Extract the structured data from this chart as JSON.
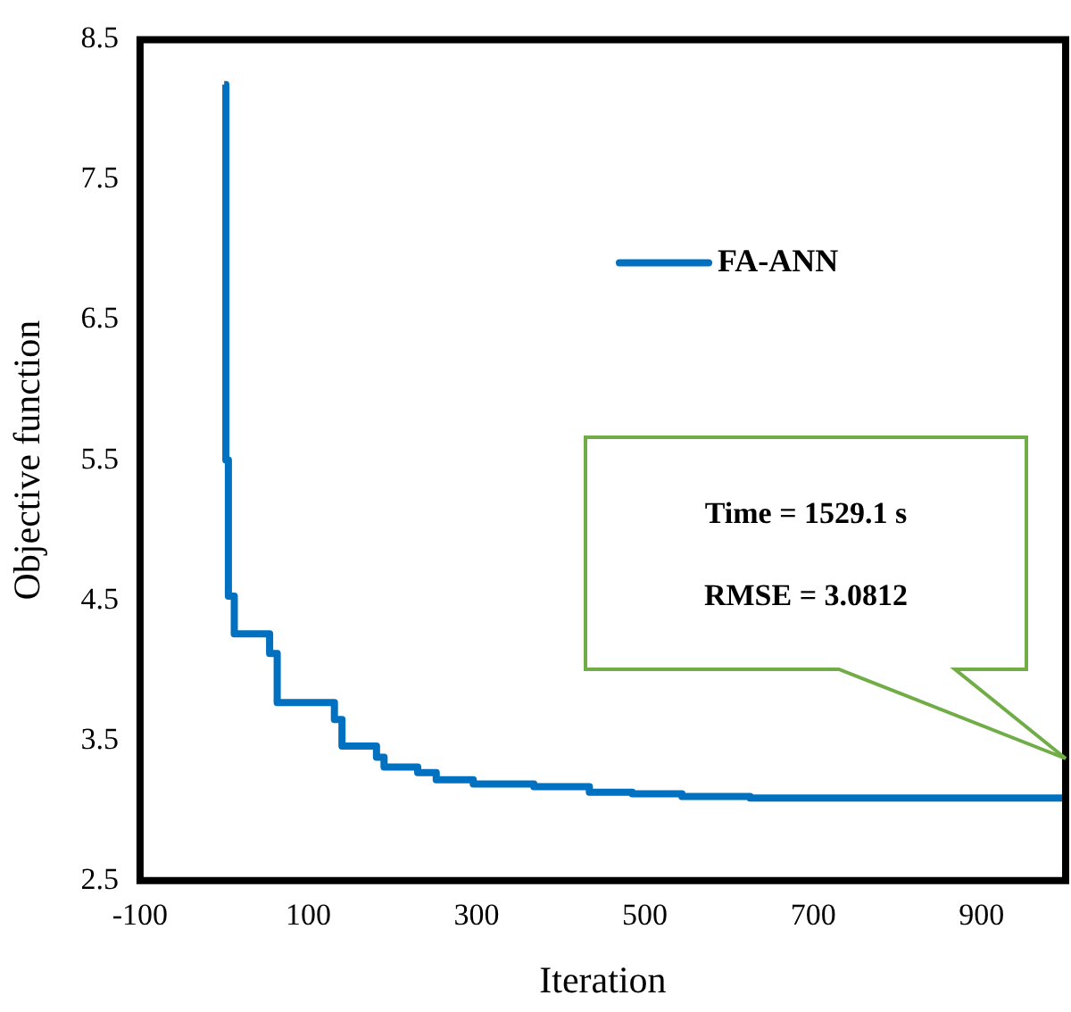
{
  "chart_data": {
    "type": "step",
    "xlabel": "Iteration",
    "ylabel": "Objective function",
    "x": [
      0,
      2,
      5,
      12,
      54,
      63,
      131,
      140,
      181,
      190,
      230,
      252,
      296,
      368,
      434,
      485,
      544,
      625,
      1000
    ],
    "series": [
      {
        "name": "FA-ANN",
        "color": "#0070c0",
        "values": [
          8.18,
          5.5,
          4.53,
          4.26,
          4.12,
          3.77,
          3.65,
          3.46,
          3.38,
          3.31,
          3.27,
          3.22,
          3.19,
          3.17,
          3.13,
          3.12,
          3.1,
          3.09,
          3.09
        ]
      }
    ],
    "xlim": [
      -100,
      1000
    ],
    "xticks": [
      -100,
      100,
      300,
      500,
      700,
      900
    ],
    "ylim": [
      2.5,
      8.5
    ],
    "yticks": [
      2.5,
      3.5,
      4.5,
      5.5,
      6.5,
      7.5,
      8.5
    ],
    "grid": false,
    "legend": "top right",
    "annotations": [
      "Time = 1529.1 s",
      "RMSE = 3.0812"
    ]
  }
}
